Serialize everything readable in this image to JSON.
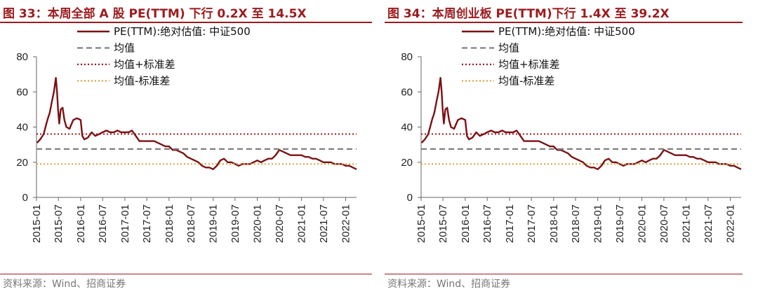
{
  "charts": [
    {
      "title": "图 33：本周全部 A 股 PE(TTM) 下行 0.2X 至 14.5X",
      "source": "资料来源：Wind、招商证券"
    },
    {
      "title": "图 34：本周创业板 PE(TTM)下行 1.4X 至 39.2X",
      "source": "资料来源：Wind、招商证券"
    }
  ],
  "chart_data": [
    {
      "type": "line",
      "title": "图 33：本周全部 A 股 PE(TTM) 下行 0.2X 至 14.5X",
      "xlabel": "",
      "ylabel": "",
      "ylim": [
        0,
        80
      ],
      "yticks": [
        0,
        20,
        40,
        60,
        80
      ],
      "xlim": [
        "2015-01",
        "2022-04"
      ],
      "xticks": [
        "2015-01",
        "2015-07",
        "2016-01",
        "2016-07",
        "2017-01",
        "2017-07",
        "2018-01",
        "2018-07",
        "2019-01",
        "2019-07",
        "2020-01",
        "2020-07",
        "2021-01",
        "2021-07",
        "2022-01"
      ],
      "grid": false,
      "legend_position": "top",
      "series": [
        {
          "name": "PE(TTM):绝对估值: 中证500",
          "color": "#7b1113",
          "style": "solid",
          "points": [
            [
              "2015-01-05",
              31
            ],
            [
              "2015-02-01",
              33
            ],
            [
              "2015-03-01",
              36
            ],
            [
              "2015-04-01",
              44
            ],
            [
              "2015-04-20",
              48
            ],
            [
              "2015-05-10",
              55
            ],
            [
              "2015-05-25",
              60
            ],
            [
              "2015-06-10",
              68
            ],
            [
              "2015-06-20",
              60
            ],
            [
              "2015-06-28",
              50
            ],
            [
              "2015-07-08",
              42
            ],
            [
              "2015-07-20",
              50
            ],
            [
              "2015-08-05",
              51
            ],
            [
              "2015-08-20",
              44
            ],
            [
              "2015-09-05",
              40
            ],
            [
              "2015-10-01",
              39
            ],
            [
              "2015-11-01",
              44
            ],
            [
              "2015-12-01",
              45
            ],
            [
              "2016-01-01",
              44
            ],
            [
              "2016-01-15",
              35
            ],
            [
              "2016-02-01",
              33
            ],
            [
              "2016-03-01",
              34
            ],
            [
              "2016-04-01",
              37
            ],
            [
              "2016-05-01",
              35
            ],
            [
              "2016-06-01",
              36
            ],
            [
              "2016-07-01",
              37
            ],
            [
              "2016-08-01",
              38
            ],
            [
              "2016-09-01",
              37
            ],
            [
              "2016-10-01",
              37
            ],
            [
              "2016-11-01",
              38
            ],
            [
              "2016-12-01",
              37
            ],
            [
              "2017-01-01",
              37
            ],
            [
              "2017-02-01",
              37
            ],
            [
              "2017-03-01",
              38
            ],
            [
              "2017-04-01",
              35
            ],
            [
              "2017-05-01",
              32
            ],
            [
              "2017-06-01",
              32
            ],
            [
              "2017-07-01",
              32
            ],
            [
              "2017-08-01",
              32
            ],
            [
              "2017-09-01",
              32
            ],
            [
              "2017-10-01",
              31
            ],
            [
              "2017-11-01",
              30
            ],
            [
              "2017-12-01",
              29
            ],
            [
              "2018-01-01",
              29
            ],
            [
              "2018-02-01",
              27
            ],
            [
              "2018-03-01",
              27
            ],
            [
              "2018-04-01",
              26
            ],
            [
              "2018-05-01",
              25
            ],
            [
              "2018-06-01",
              23
            ],
            [
              "2018-07-01",
              22
            ],
            [
              "2018-08-01",
              21
            ],
            [
              "2018-09-01",
              20
            ],
            [
              "2018-10-01",
              18
            ],
            [
              "2018-11-01",
              17
            ],
            [
              "2018-12-01",
              17
            ],
            [
              "2019-01-01",
              16
            ],
            [
              "2019-02-01",
              18
            ],
            [
              "2019-03-01",
              21
            ],
            [
              "2019-04-01",
              22
            ],
            [
              "2019-05-01",
              20
            ],
            [
              "2019-06-01",
              20
            ],
            [
              "2019-07-01",
              19
            ],
            [
              "2019-08-01",
              18
            ],
            [
              "2019-09-01",
              19
            ],
            [
              "2019-10-01",
              19
            ],
            [
              "2019-11-01",
              19
            ],
            [
              "2019-12-01",
              20
            ],
            [
              "2020-01-01",
              21
            ],
            [
              "2020-02-01",
              20
            ],
            [
              "2020-03-01",
              21
            ],
            [
              "2020-04-01",
              22
            ],
            [
              "2020-05-01",
              22
            ],
            [
              "2020-06-01",
              24
            ],
            [
              "2020-07-01",
              27
            ],
            [
              "2020-08-01",
              26
            ],
            [
              "2020-09-01",
              25
            ],
            [
              "2020-10-01",
              24
            ],
            [
              "2020-11-01",
              24
            ],
            [
              "2020-12-01",
              24
            ],
            [
              "2021-01-01",
              24
            ],
            [
              "2021-02-01",
              23
            ],
            [
              "2021-03-01",
              23
            ],
            [
              "2021-04-01",
              22
            ],
            [
              "2021-05-01",
              22
            ],
            [
              "2021-06-01",
              21
            ],
            [
              "2021-07-01",
              20
            ],
            [
              "2021-08-01",
              20
            ],
            [
              "2021-09-01",
              20
            ],
            [
              "2021-10-01",
              19
            ],
            [
              "2021-11-01",
              19
            ],
            [
              "2021-12-01",
              19
            ],
            [
              "2022-01-01",
              18
            ],
            [
              "2022-02-01",
              18
            ],
            [
              "2022-03-01",
              17
            ],
            [
              "2022-04-01",
              16
            ]
          ]
        },
        {
          "name": "均值",
          "color": "#7f7f7f",
          "style": "dashed",
          "value": 27.5
        },
        {
          "name": "均值+标准差",
          "color": "#9c1b1e",
          "style": "dotted",
          "value": 36
        },
        {
          "name": "均值-标准差",
          "color": "#d9a441",
          "style": "dotted",
          "value": 19
        }
      ]
    },
    {
      "type": "line",
      "title": "图 34：本周创业板 PE(TTM)下行 1.4X 至 39.2X",
      "xlabel": "",
      "ylabel": "",
      "ylim": [
        0,
        80
      ],
      "yticks": [
        0,
        20,
        40,
        60,
        80
      ],
      "xlim": [
        "2015-01",
        "2022-04"
      ],
      "xticks": [
        "2015-01",
        "2015-07",
        "2016-01",
        "2016-07",
        "2017-01",
        "2017-07",
        "2018-01",
        "2018-07",
        "2019-01",
        "2019-07",
        "2020-01",
        "2020-07",
        "2021-01",
        "2021-07",
        "2022-01"
      ],
      "grid": false,
      "legend_position": "top",
      "series": [
        {
          "name": "PE(TTM):绝对估值: 中证500",
          "color": "#7b1113",
          "style": "solid",
          "points": [
            [
              "2015-01-05",
              31
            ],
            [
              "2015-02-01",
              33
            ],
            [
              "2015-03-01",
              36
            ],
            [
              "2015-04-01",
              44
            ],
            [
              "2015-04-20",
              48
            ],
            [
              "2015-05-10",
              55
            ],
            [
              "2015-05-25",
              60
            ],
            [
              "2015-06-10",
              68
            ],
            [
              "2015-06-20",
              60
            ],
            [
              "2015-06-28",
              50
            ],
            [
              "2015-07-08",
              42
            ],
            [
              "2015-07-20",
              50
            ],
            [
              "2015-08-05",
              51
            ],
            [
              "2015-08-20",
              44
            ],
            [
              "2015-09-05",
              40
            ],
            [
              "2015-10-01",
              39
            ],
            [
              "2015-11-01",
              44
            ],
            [
              "2015-12-01",
              45
            ],
            [
              "2016-01-01",
              44
            ],
            [
              "2016-01-15",
              35
            ],
            [
              "2016-02-01",
              33
            ],
            [
              "2016-03-01",
              34
            ],
            [
              "2016-04-01",
              37
            ],
            [
              "2016-05-01",
              35
            ],
            [
              "2016-06-01",
              36
            ],
            [
              "2016-07-01",
              37
            ],
            [
              "2016-08-01",
              38
            ],
            [
              "2016-09-01",
              37
            ],
            [
              "2016-10-01",
              37
            ],
            [
              "2016-11-01",
              38
            ],
            [
              "2016-12-01",
              37
            ],
            [
              "2017-01-01",
              37
            ],
            [
              "2017-02-01",
              37
            ],
            [
              "2017-03-01",
              38
            ],
            [
              "2017-04-01",
              35
            ],
            [
              "2017-05-01",
              32
            ],
            [
              "2017-06-01",
              32
            ],
            [
              "2017-07-01",
              32
            ],
            [
              "2017-08-01",
              32
            ],
            [
              "2017-09-01",
              32
            ],
            [
              "2017-10-01",
              31
            ],
            [
              "2017-11-01",
              30
            ],
            [
              "2017-12-01",
              29
            ],
            [
              "2018-01-01",
              29
            ],
            [
              "2018-02-01",
              27
            ],
            [
              "2018-03-01",
              27
            ],
            [
              "2018-04-01",
              26
            ],
            [
              "2018-05-01",
              25
            ],
            [
              "2018-06-01",
              23
            ],
            [
              "2018-07-01",
              22
            ],
            [
              "2018-08-01",
              21
            ],
            [
              "2018-09-01",
              20
            ],
            [
              "2018-10-01",
              18
            ],
            [
              "2018-11-01",
              17
            ],
            [
              "2018-12-01",
              17
            ],
            [
              "2019-01-01",
              16
            ],
            [
              "2019-02-01",
              18
            ],
            [
              "2019-03-01",
              21
            ],
            [
              "2019-04-01",
              22
            ],
            [
              "2019-05-01",
              20
            ],
            [
              "2019-06-01",
              20
            ],
            [
              "2019-07-01",
              19
            ],
            [
              "2019-08-01",
              18
            ],
            [
              "2019-09-01",
              19
            ],
            [
              "2019-10-01",
              19
            ],
            [
              "2019-11-01",
              19
            ],
            [
              "2019-12-01",
              20
            ],
            [
              "2020-01-01",
              21
            ],
            [
              "2020-02-01",
              20
            ],
            [
              "2020-03-01",
              21
            ],
            [
              "2020-04-01",
              22
            ],
            [
              "2020-05-01",
              22
            ],
            [
              "2020-06-01",
              24
            ],
            [
              "2020-07-01",
              27
            ],
            [
              "2020-08-01",
              26
            ],
            [
              "2020-09-01",
              25
            ],
            [
              "2020-10-01",
              24
            ],
            [
              "2020-11-01",
              24
            ],
            [
              "2020-12-01",
              24
            ],
            [
              "2021-01-01",
              24
            ],
            [
              "2021-02-01",
              23
            ],
            [
              "2021-03-01",
              23
            ],
            [
              "2021-04-01",
              22
            ],
            [
              "2021-05-01",
              22
            ],
            [
              "2021-06-01",
              21
            ],
            [
              "2021-07-01",
              20
            ],
            [
              "2021-08-01",
              20
            ],
            [
              "2021-09-01",
              20
            ],
            [
              "2021-10-01",
              19
            ],
            [
              "2021-11-01",
              19
            ],
            [
              "2021-12-01",
              19
            ],
            [
              "2022-01-01",
              18
            ],
            [
              "2022-02-01",
              18
            ],
            [
              "2022-03-01",
              17
            ],
            [
              "2022-04-01",
              16
            ]
          ]
        },
        {
          "name": "均值",
          "color": "#7f7f7f",
          "style": "dashed",
          "value": 27.5
        },
        {
          "name": "均值+标准差",
          "color": "#9c1b1e",
          "style": "dotted",
          "value": 36
        },
        {
          "name": "均值-标准差",
          "color": "#d9a441",
          "style": "dotted",
          "value": 19
        }
      ]
    }
  ]
}
